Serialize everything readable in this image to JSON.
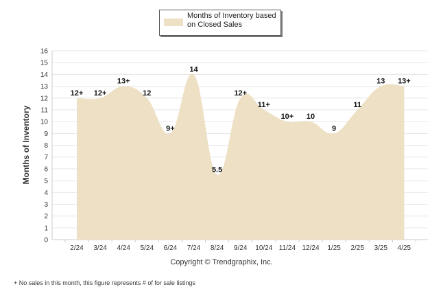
{
  "chart_data": {
    "type": "area",
    "legend": "Months of Inventory based on Closed Sales",
    "ylabel": "Months of Inventory",
    "categories": [
      "2/24",
      "3/24",
      "4/24",
      "5/24",
      "6/24",
      "7/24",
      "8/24",
      "9/24",
      "10/24",
      "11/24",
      "12/24",
      "1/25",
      "2/25",
      "3/25",
      "4/25"
    ],
    "values": [
      12,
      12,
      13,
      12,
      9,
      14,
      5.5,
      12,
      11,
      10,
      10,
      9,
      11,
      13,
      13
    ],
    "data_labels": [
      "12+",
      "12+",
      "13+",
      "12",
      "9+",
      "14",
      "5.5",
      "12+",
      "11+",
      "10+",
      "10",
      "9",
      "11",
      "13",
      "13+"
    ],
    "ylim": [
      0,
      16
    ],
    "yticks": [
      0,
      1,
      2,
      3,
      4,
      5,
      6,
      7,
      8,
      9,
      10,
      11,
      12,
      13,
      14,
      15,
      16
    ],
    "grid": true,
    "fill_color": "#ede0c4",
    "legend_position": "top-center"
  },
  "copyright": "Copyright © Trendgraphix, Inc.",
  "footnote": "+  No sales in this month, this figure represents # of for sale listings"
}
